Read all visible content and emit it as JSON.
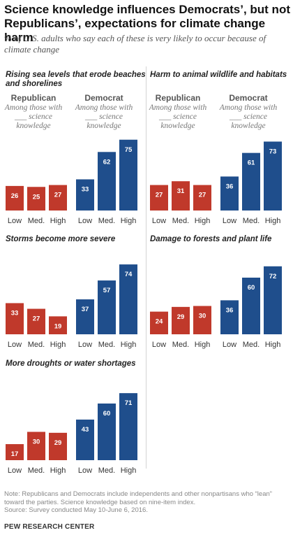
{
  "title": "Science knowledge influences Democrats’, but not Republicans’, expectations for climate change harm",
  "subtitle": "% of U.S. adults who say each of these is very likely to occur because of climate change",
  "group_labels": {
    "republican": "Republican",
    "democrat": "Democrat"
  },
  "group_sub": "Among those with ___ science knowledge",
  "colors": {
    "republican": "#C0392B",
    "democrat": "#1F4E8C",
    "value_text": "#ffffff"
  },
  "chart_data": [
    {
      "type": "bar",
      "title": "Rising sea levels that erode beaches and shorelines",
      "categories": [
        "Low",
        "Med.",
        "High"
      ],
      "ylim": [
        0,
        100
      ],
      "series": [
        {
          "name": "Republican",
          "values": [
            26,
            25,
            27
          ]
        },
        {
          "name": "Democrat",
          "values": [
            33,
            62,
            75
          ]
        }
      ]
    },
    {
      "type": "bar",
      "title": "Harm to animal wildlife and habitats",
      "categories": [
        "Low",
        "Med.",
        "High"
      ],
      "ylim": [
        0,
        100
      ],
      "series": [
        {
          "name": "Republican",
          "values": [
            27,
            31,
            27
          ]
        },
        {
          "name": "Democrat",
          "values": [
            36,
            61,
            73
          ]
        }
      ]
    },
    {
      "type": "bar",
      "title": "Storms become more severe",
      "categories": [
        "Low",
        "Med.",
        "High"
      ],
      "ylim": [
        0,
        100
      ],
      "series": [
        {
          "name": "Republican",
          "values": [
            33,
            27,
            19
          ]
        },
        {
          "name": "Democrat",
          "values": [
            37,
            57,
            74
          ]
        }
      ]
    },
    {
      "type": "bar",
      "title": "Damage to forests and plant life",
      "categories": [
        "Low",
        "Med.",
        "High"
      ],
      "ylim": [
        0,
        100
      ],
      "series": [
        {
          "name": "Republican",
          "values": [
            24,
            29,
            30
          ]
        },
        {
          "name": "Democrat",
          "values": [
            36,
            60,
            72
          ]
        }
      ]
    },
    {
      "type": "bar",
      "title": "More droughts or water shortages",
      "categories": [
        "Low",
        "Med.",
        "High"
      ],
      "ylim": [
        0,
        100
      ],
      "series": [
        {
          "name": "Republican",
          "values": [
            17,
            30,
            29
          ]
        },
        {
          "name": "Democrat",
          "values": [
            43,
            60,
            71
          ]
        }
      ]
    }
  ],
  "notes": [
    "Note: Republicans and Democrats include independents and other nonpartisans who “lean” toward the parties. Science knowledge based on nine-item index.",
    "Source: Survey conducted May 10-June 6, 2016."
  ],
  "footer": "PEW RESEARCH CENTER"
}
